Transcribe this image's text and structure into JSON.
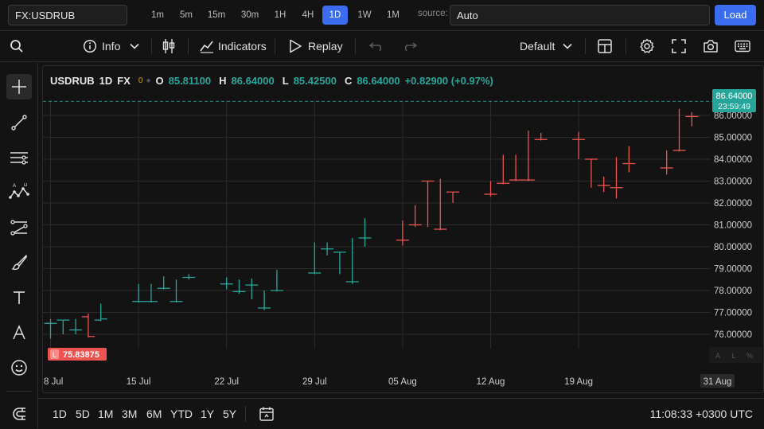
{
  "topbar": {
    "symbol": "FX:USDRUB",
    "timeframes": [
      {
        "label": "1m",
        "active": false
      },
      {
        "label": "5m",
        "active": false
      },
      {
        "label": "15m",
        "active": false
      },
      {
        "label": "30m",
        "active": false
      },
      {
        "label": "1H",
        "active": false
      },
      {
        "label": "4H",
        "active": false
      },
      {
        "label": "1D",
        "active": true
      },
      {
        "label": "1W",
        "active": false
      },
      {
        "label": "1M",
        "active": false
      }
    ],
    "source_label": "source:",
    "source_value": "Auto",
    "load_label": "Load"
  },
  "toolbar": {
    "info_label": "Info",
    "indicators_label": "Indicators",
    "replay_label": "Replay",
    "layout_label": "Default"
  },
  "legend": {
    "symbol": "USDRUB",
    "interval": "1D",
    "exchange": "FX",
    "status": "0",
    "o_label": "O",
    "o_value": "85.81100",
    "h_label": "H",
    "h_value": "86.64000",
    "l_label": "L",
    "l_value": "85.42500",
    "c_label": "C",
    "c_value": "86.64000",
    "change": "+0.82900 (+0.97%)"
  },
  "price_badge": {
    "value": "86.64000",
    "countdown": "23:59:49"
  },
  "low_badge": {
    "label": "L",
    "value": "75.83875"
  },
  "scale_mode_buttons": [
    "A",
    "L",
    "%"
  ],
  "bottombar": {
    "ranges": [
      "1D",
      "5D",
      "1M",
      "3M",
      "6M",
      "YTD",
      "1Y",
      "5Y"
    ],
    "clock": "11:08:33 +0300 UTC"
  },
  "chart_data": {
    "type": "ohlc",
    "ylim": [
      75.2,
      86.9
    ],
    "y_ticks": [
      76,
      77,
      78,
      79,
      80,
      81,
      82,
      83,
      84,
      85,
      86
    ],
    "y_tick_labels": [
      "76.00000",
      "77.00000",
      "78.00000",
      "79.00000",
      "80.00000",
      "81.00000",
      "82.00000",
      "83.00000",
      "84.00000",
      "85.00000",
      "86.00000"
    ],
    "x_tick_labels": [
      "8 Jul",
      "15 Jul",
      "22 Jul",
      "29 Jul",
      "05 Aug",
      "12 Aug",
      "19 Aug",
      "31 Aug"
    ],
    "x_tick_dates": [
      "2024-07-08",
      "2024-07-15",
      "2024-07-22",
      "2024-07-29",
      "2024-08-05",
      "2024-08-12",
      "2024-08-19",
      "2024-08-31"
    ],
    "last_price": 86.64,
    "colors": {
      "up": "#26a69a",
      "down": "#ef5350"
    },
    "bars": [
      {
        "date": "2024-07-08",
        "o": 76.5,
        "h": 76.7,
        "l": 75.8,
        "c": 76.5
      },
      {
        "date": "2024-07-09",
        "o": 76.65,
        "h": 76.65,
        "l": 76.0,
        "c": 76.65
      },
      {
        "date": "2024-07-10",
        "o": 76.2,
        "h": 76.7,
        "l": 76.0,
        "c": 76.2
      },
      {
        "date": "2024-07-11",
        "o": 76.8,
        "h": 76.95,
        "l": 75.85,
        "c": 75.9
      },
      {
        "date": "2024-07-12",
        "o": 76.65,
        "h": 77.4,
        "l": 76.6,
        "c": 76.7
      },
      {
        "date": "2024-07-15",
        "o": 77.5,
        "h": 78.3,
        "l": 77.45,
        "c": 77.5
      },
      {
        "date": "2024-07-16",
        "o": 77.5,
        "h": 78.3,
        "l": 77.45,
        "c": 77.5
      },
      {
        "date": "2024-07-17",
        "o": 78.1,
        "h": 78.65,
        "l": 78.05,
        "c": 78.1
      },
      {
        "date": "2024-07-18",
        "o": 77.5,
        "h": 78.5,
        "l": 77.45,
        "c": 77.5
      },
      {
        "date": "2024-07-19",
        "o": 78.6,
        "h": 78.75,
        "l": 78.5,
        "c": 78.6
      },
      {
        "date": "2024-07-22",
        "o": 78.3,
        "h": 78.6,
        "l": 78.05,
        "c": 78.3
      },
      {
        "date": "2024-07-23",
        "o": 77.95,
        "h": 78.5,
        "l": 77.85,
        "c": 77.95
      },
      {
        "date": "2024-07-24",
        "o": 78.25,
        "h": 78.55,
        "l": 77.6,
        "c": 78.25
      },
      {
        "date": "2024-07-25",
        "o": 77.2,
        "h": 78.0,
        "l": 77.1,
        "c": 77.2
      },
      {
        "date": "2024-07-26",
        "o": 78.0,
        "h": 78.95,
        "l": 77.95,
        "c": 78.0
      },
      {
        "date": "2024-07-29",
        "o": 78.8,
        "h": 80.2,
        "l": 78.75,
        "c": 78.8
      },
      {
        "date": "2024-07-30",
        "o": 79.9,
        "h": 80.2,
        "l": 79.6,
        "c": 79.9
      },
      {
        "date": "2024-07-31",
        "o": 79.75,
        "h": 79.75,
        "l": 78.75,
        "c": 79.75
      },
      {
        "date": "2024-08-01",
        "o": 78.4,
        "h": 80.4,
        "l": 78.3,
        "c": 78.4
      },
      {
        "date": "2024-08-02",
        "o": 80.4,
        "h": 81.3,
        "l": 80.0,
        "c": 80.4
      },
      {
        "date": "2024-08-05",
        "o": 80.3,
        "h": 81.2,
        "l": 80.05,
        "c": 80.3
      },
      {
        "date": "2024-08-06",
        "o": 81.0,
        "h": 81.9,
        "l": 80.9,
        "c": 81.0
      },
      {
        "date": "2024-08-07",
        "o": 83.0,
        "h": 83.0,
        "l": 80.9,
        "c": 83.0
      },
      {
        "date": "2024-08-08",
        "o": 80.8,
        "h": 83.1,
        "l": 80.75,
        "c": 80.8
      },
      {
        "date": "2024-08-09",
        "o": 82.5,
        "h": 82.5,
        "l": 82.0,
        "c": 82.5
      },
      {
        "date": "2024-08-12",
        "o": 82.4,
        "h": 83.0,
        "l": 82.3,
        "c": 82.4
      },
      {
        "date": "2024-08-13",
        "o": 82.9,
        "h": 84.2,
        "l": 82.85,
        "c": 82.9
      },
      {
        "date": "2024-08-14",
        "o": 83.05,
        "h": 84.2,
        "l": 83.0,
        "c": 83.05
      },
      {
        "date": "2024-08-15",
        "o": 83.05,
        "h": 85.3,
        "l": 83.0,
        "c": 83.05
      },
      {
        "date": "2024-08-16",
        "o": 84.9,
        "h": 85.2,
        "l": 84.85,
        "c": 84.9
      },
      {
        "date": "2024-08-19",
        "o": 84.9,
        "h": 85.25,
        "l": 84.0,
        "c": 84.9
      },
      {
        "date": "2024-08-20",
        "o": 84.0,
        "h": 84.0,
        "l": 82.7,
        "c": 84.0
      },
      {
        "date": "2024-08-21",
        "o": 82.8,
        "h": 83.2,
        "l": 82.5,
        "c": 82.8
      },
      {
        "date": "2024-08-22",
        "o": 82.7,
        "h": 84.1,
        "l": 82.2,
        "c": 82.7
      },
      {
        "date": "2024-08-23",
        "o": 83.8,
        "h": 84.6,
        "l": 83.4,
        "c": 83.8
      },
      {
        "date": "2024-08-26",
        "o": 83.6,
        "h": 84.4,
        "l": 83.3,
        "c": 83.6
      },
      {
        "date": "2024-08-27",
        "o": 84.4,
        "h": 86.3,
        "l": 84.35,
        "c": 84.4
      },
      {
        "date": "2024-08-28",
        "o": 85.95,
        "h": 86.15,
        "l": 85.5,
        "c": 85.95
      }
    ]
  }
}
